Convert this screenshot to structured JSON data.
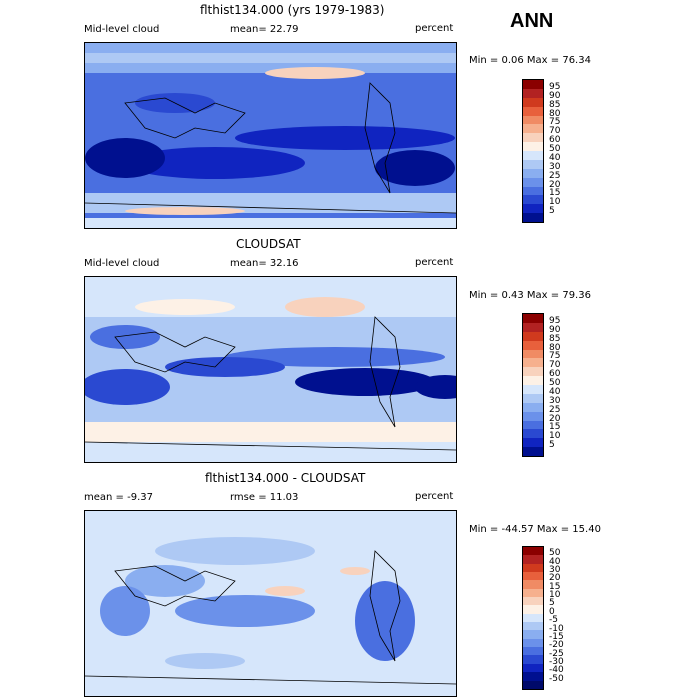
{
  "season": "ANN",
  "panels": [
    {
      "title": "flthist134.000 (yrs 1979-1983)",
      "left_label": "Mid-level cloud",
      "center_label": "mean=  22.79",
      "right_label": "percent",
      "minmax": "Min =   0.06 Max =  76.34"
    },
    {
      "title": "CLOUDSAT",
      "left_label": "Mid-level cloud",
      "center_label": "mean=  32.16",
      "right_label": "percent",
      "minmax": "Min =   0.43 Max =  79.36"
    },
    {
      "title": "flthist134.000 - CLOUDSAT",
      "left_label": "mean =  -9.37",
      "center_label": "rmse =  11.03",
      "right_label": "percent",
      "minmax": "Min = -44.57 Max =  15.40"
    }
  ],
  "colorbars": {
    "absolute": {
      "levels": [
        "95",
        "90",
        "85",
        "80",
        "75",
        "70",
        "60",
        "50",
        "40",
        "30",
        "25",
        "20",
        "15",
        "10",
        "5"
      ],
      "colors": [
        "#8b0000",
        "#b22222",
        "#d03a1e",
        "#e8603c",
        "#f08b64",
        "#f6b08e",
        "#f8d2bd",
        "#fdf1e6",
        "#d6e6fb",
        "#aec9f4",
        "#8aaef0",
        "#6b91ea",
        "#4a6fe0",
        "#2a49d1",
        "#1024c0",
        "#00108f"
      ]
    },
    "difference": {
      "levels": [
        "50",
        "40",
        "30",
        "20",
        "15",
        "10",
        "5",
        "0",
        "-5",
        "-10",
        "-15",
        "-20",
        "-25",
        "-30",
        "-40",
        "-50"
      ],
      "colors": [
        "#8b0000",
        "#b22222",
        "#d03a1e",
        "#e8603c",
        "#f08b64",
        "#f6b08e",
        "#f8d2bd",
        "#fdf1e6",
        "#d6e6fb",
        "#aec9f4",
        "#8aaef0",
        "#6b91ea",
        "#4a6fe0",
        "#2a49d1",
        "#1024c0",
        "#00108f",
        "#000a6a"
      ]
    }
  }
}
